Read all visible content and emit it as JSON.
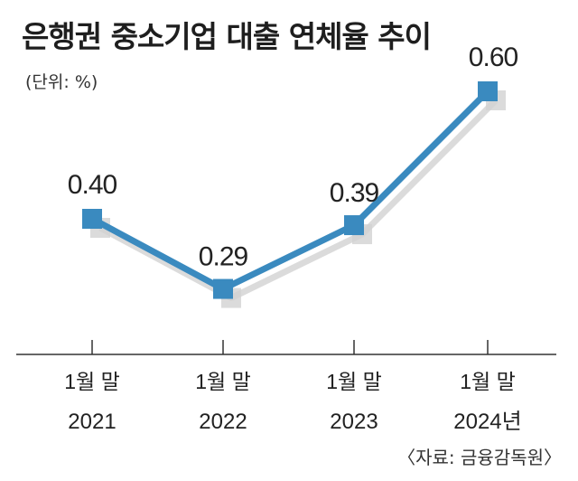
{
  "title": "은행권 중소기업 대출 연체율 추이",
  "unit": "(단위: %)",
  "source": "〈자료: 금융감독원〉",
  "colors": {
    "line": "#3a8abf",
    "marker": "#3a8abf",
    "shadow": "#d2d2d2",
    "axis": "#333333"
  },
  "chart_data": {
    "type": "line",
    "title": "은행권 중소기업 대출 연체율 추이",
    "unit": "%",
    "categories": [
      [
        "1월 말",
        "2021"
      ],
      [
        "1월 말",
        "2022"
      ],
      [
        "1월 말",
        "2023"
      ],
      [
        "1월 말",
        "2024년"
      ]
    ],
    "values": [
      0.4,
      0.29,
      0.39,
      0.6
    ],
    "value_labels": [
      "0.40",
      "0.29",
      "0.39",
      "0.60"
    ],
    "grid": false,
    "legend": "none"
  }
}
